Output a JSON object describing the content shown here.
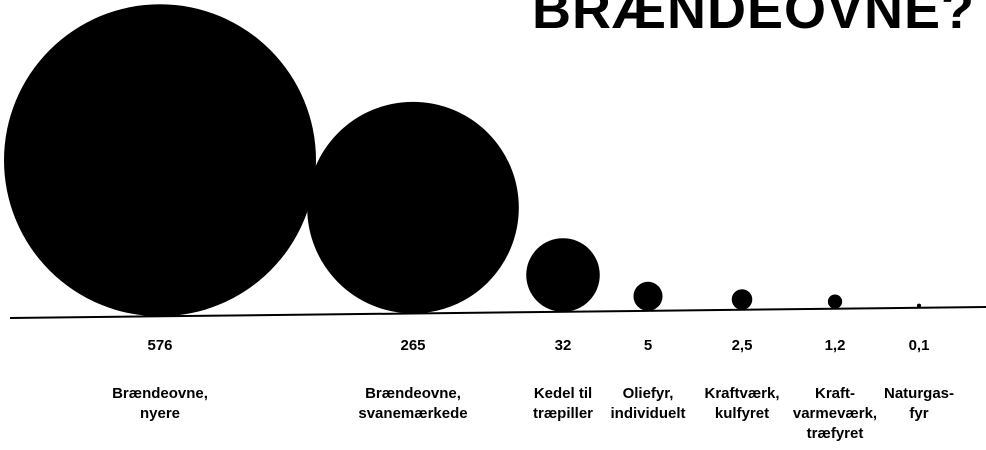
{
  "chart_data": {
    "type": "bubble",
    "title": "BRÆNDEOVNE?",
    "categories": [
      [
        "Brændeovne,",
        "nyere"
      ],
      [
        "Brændeovne,",
        "svanemærkede"
      ],
      [
        "Kedel til",
        "træpiller"
      ],
      [
        "Oliefyr,",
        "individuelt"
      ],
      [
        "Kraftværk,",
        "kulfyret"
      ],
      [
        "Kraft-",
        "varmeværk,",
        "træfyret"
      ],
      [
        "Naturgas-",
        "fyr"
      ]
    ],
    "values": [
      576,
      265,
      32,
      5,
      2.5,
      1.2,
      0.1
    ],
    "value_labels": [
      "576",
      "265",
      "32",
      "5",
      "2,5",
      "1,2",
      "0,1"
    ],
    "color": "#000000"
  }
}
